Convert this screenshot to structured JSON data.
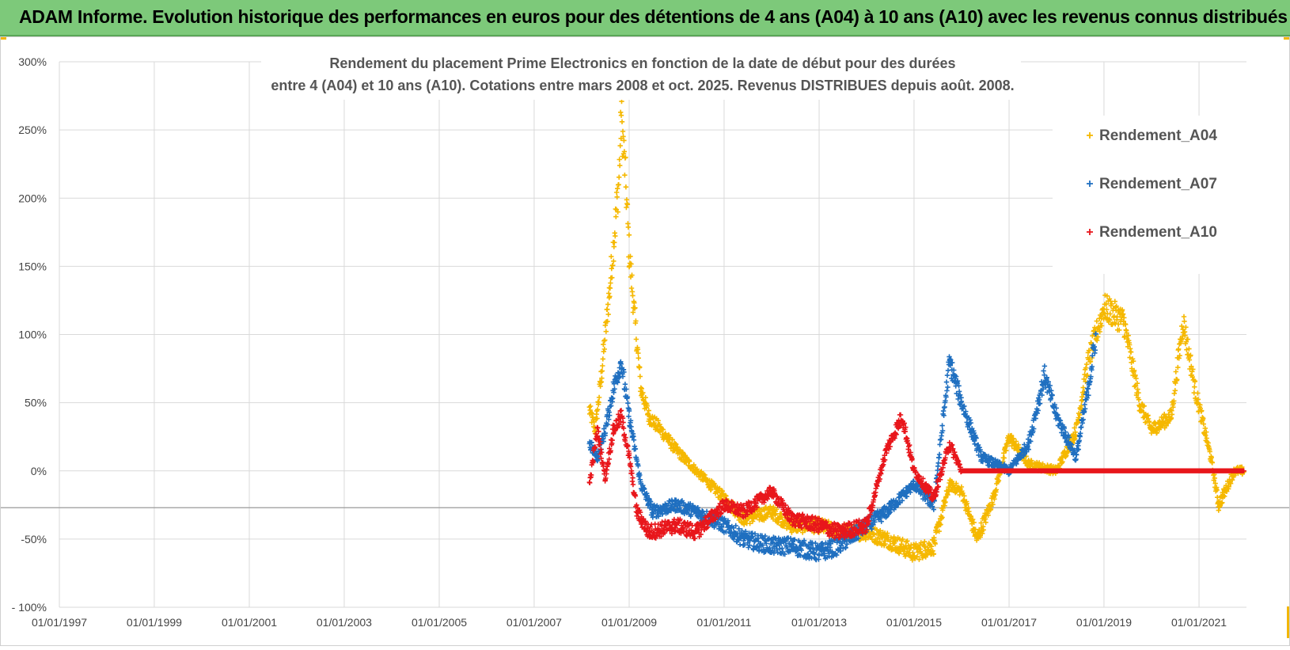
{
  "banner": {
    "title": "ADAM Informe. Evolution historique des performances en euros pour des détentions de 4 ans (A04) à 10 ans (A10) avec les revenus connus distribués"
  },
  "chart_data": {
    "type": "scatter",
    "title_line1": "Rendement du placement Prime Electronics  en fonction de la date de début pour des durées",
    "title_line2": "entre 4 (A04) et 10 ans (A10). Cotations entre mars 2008 et oct. 2025. Revenus DISTRIBUES depuis août. 2008.",
    "marker": "+",
    "x_range": [
      "1997-01-01",
      "2022-01-01"
    ],
    "y_range": [
      -100,
      300
    ],
    "y_ticks": [
      -100,
      -50,
      0,
      50,
      100,
      150,
      200,
      250,
      300
    ],
    "y_tick_labels": [
      "- 100%",
      "-50%",
      "0%",
      "50%",
      "100%",
      "150%",
      "200%",
      "250%",
      "300%"
    ],
    "x_tick_labels": [
      "01/01/1997",
      "01/01/1999",
      "01/01/2001",
      "01/01/2003",
      "01/01/2005",
      "01/01/2007",
      "01/01/2009",
      "01/01/2011",
      "01/01/2013",
      "01/01/2015",
      "01/01/2017",
      "01/01/2019",
      "01/01/2021"
    ],
    "legend_position": "top-right",
    "grid": true,
    "reference_line_y": -27,
    "series": [
      {
        "name": "Rendement_A04",
        "color": "#f5b800",
        "points": [
          [
            "2008-03-01",
            45
          ],
          [
            "2008-04-15",
            30
          ],
          [
            "2008-06-01",
            70
          ],
          [
            "2008-07-01",
            100
          ],
          [
            "2008-08-01",
            130
          ],
          [
            "2008-09-15",
            180
          ],
          [
            "2008-10-15",
            215
          ],
          [
            "2008-11-01",
            260
          ],
          [
            "2008-12-01",
            220
          ],
          [
            "2009-01-01",
            160
          ],
          [
            "2009-02-15",
            110
          ],
          [
            "2009-04-01",
            60
          ],
          [
            "2009-06-01",
            40
          ],
          [
            "2009-09-01",
            30
          ],
          [
            "2010-01-01",
            15
          ],
          [
            "2010-06-01",
            0
          ],
          [
            "2011-01-01",
            -20
          ],
          [
            "2011-06-01",
            -35
          ],
          [
            "2012-01-01",
            -30
          ],
          [
            "2012-06-01",
            -40
          ],
          [
            "2013-01-01",
            -40
          ],
          [
            "2013-06-01",
            -45
          ],
          [
            "2014-01-01",
            -45
          ],
          [
            "2014-06-01",
            -50
          ],
          [
            "2015-01-01",
            -60
          ],
          [
            "2015-06-01",
            -55
          ],
          [
            "2015-10-01",
            -10
          ],
          [
            "2016-01-01",
            -15
          ],
          [
            "2016-05-01",
            -50
          ],
          [
            "2016-09-01",
            -20
          ],
          [
            "2017-01-01",
            25
          ],
          [
            "2017-06-01",
            5
          ],
          [
            "2018-01-01",
            0
          ],
          [
            "2018-06-01",
            30
          ],
          [
            "2018-09-01",
            80
          ],
          [
            "2019-01-01",
            120
          ],
          [
            "2019-06-01",
            110
          ],
          [
            "2019-10-01",
            50
          ],
          [
            "2020-01-01",
            30
          ],
          [
            "2020-06-01",
            40
          ],
          [
            "2020-09-01",
            110
          ],
          [
            "2020-12-01",
            60
          ],
          [
            "2021-04-01",
            10
          ],
          [
            "2021-06-01",
            -25
          ],
          [
            "2021-10-01",
            0
          ],
          [
            "2021-12-15",
            0
          ]
        ]
      },
      {
        "name": "Rendement_A07",
        "color": "#1f6fc0",
        "points": [
          [
            "2008-03-01",
            20
          ],
          [
            "2008-05-01",
            10
          ],
          [
            "2008-07-01",
            30
          ],
          [
            "2008-09-01",
            60
          ],
          [
            "2008-11-01",
            80
          ],
          [
            "2009-01-01",
            40
          ],
          [
            "2009-04-01",
            -10
          ],
          [
            "2009-07-01",
            -30
          ],
          [
            "2010-01-01",
            -25
          ],
          [
            "2010-06-01",
            -30
          ],
          [
            "2011-01-01",
            -40
          ],
          [
            "2011-06-01",
            -50
          ],
          [
            "2012-01-01",
            -55
          ],
          [
            "2012-06-01",
            -55
          ],
          [
            "2013-01-01",
            -60
          ],
          [
            "2013-06-01",
            -55
          ],
          [
            "2014-01-01",
            -40
          ],
          [
            "2014-06-01",
            -30
          ],
          [
            "2015-01-01",
            -10
          ],
          [
            "2015-06-01",
            -25
          ],
          [
            "2015-10-01",
            80
          ],
          [
            "2016-01-01",
            50
          ],
          [
            "2016-06-01",
            10
          ],
          [
            "2017-01-01",
            0
          ],
          [
            "2017-06-01",
            20
          ],
          [
            "2017-10-01",
            70
          ],
          [
            "2018-01-01",
            40
          ],
          [
            "2018-06-01",
            10
          ],
          [
            "2018-09-01",
            60
          ],
          [
            "2018-11-01",
            100
          ]
        ]
      },
      {
        "name": "Rendement_A10",
        "color": "#e8161b",
        "points": [
          [
            "2008-03-01",
            -10
          ],
          [
            "2008-05-01",
            30
          ],
          [
            "2008-07-01",
            -5
          ],
          [
            "2008-09-01",
            30
          ],
          [
            "2008-11-01",
            40
          ],
          [
            "2009-01-01",
            10
          ],
          [
            "2009-03-01",
            -30
          ],
          [
            "2009-06-01",
            -45
          ],
          [
            "2010-01-01",
            -40
          ],
          [
            "2010-06-01",
            -45
          ],
          [
            "2011-01-01",
            -25
          ],
          [
            "2011-06-01",
            -30
          ],
          [
            "2012-01-01",
            -15
          ],
          [
            "2012-06-01",
            -35
          ],
          [
            "2013-01-01",
            -40
          ],
          [
            "2013-06-01",
            -45
          ],
          [
            "2014-01-01",
            -40
          ],
          [
            "2014-06-01",
            15
          ],
          [
            "2014-10-01",
            40
          ],
          [
            "2015-01-01",
            0
          ],
          [
            "2015-06-01",
            -20
          ],
          [
            "2015-10-01",
            20
          ],
          [
            "2016-01-01",
            0
          ],
          [
            "2021-12-15",
            0
          ]
        ]
      }
    ]
  }
}
